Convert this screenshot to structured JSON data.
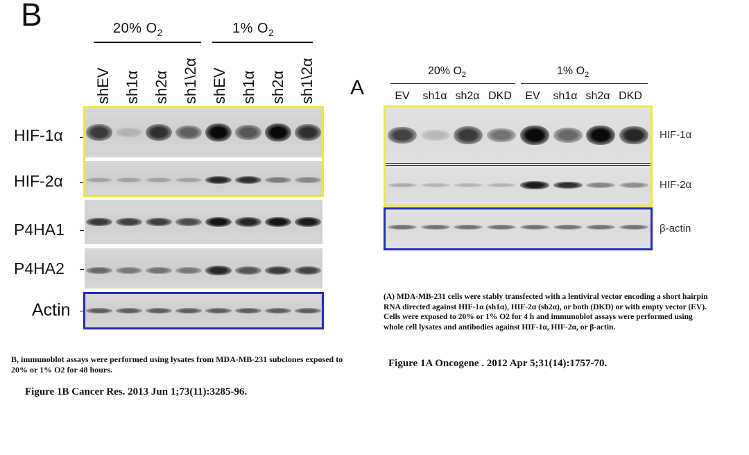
{
  "panel_b": {
    "letter": "B",
    "group_left": "20% O",
    "group_right": "1% O",
    "sub2": "2",
    "lanes": [
      "shEV",
      "sh1α",
      "sh2α",
      "sh1\\2α",
      "shEV",
      "sh1α",
      "sh2α",
      "sh1\\2α"
    ],
    "rows": [
      "HIF-1α",
      "HIF-2α",
      "P4HA1",
      "P4HA2",
      "Actin"
    ],
    "caption": "B, immunoblot assays were performed using lysates from MDA-MB-231 subclones exposed to 20% or 1% O2 for 48 hours.",
    "citation": "Figure 1B Cancer Res. 2013 Jun 1;73(11):3285-96."
  },
  "panel_a": {
    "letter": "A",
    "group_left": "20% O",
    "group_right": "1% O",
    "sub2": "2",
    "lanes": [
      "EV",
      "sh1α",
      "sh2α",
      "DKD",
      "EV",
      "sh1α",
      "sh2α",
      "DKD"
    ],
    "rows": [
      "HIF-1α",
      "HIF-2α",
      "β-actin"
    ],
    "caption": "(A) MDA-MB-231 cells were stably transfected with a lentiviral vector encoding a short hairpin RNA directed against HIF-1α (sh1α), HIF-2α (sh2α), or both (DKD) or with empty vector (EV). Cells were exposed to 20% or 1% O2 for 4 h and immunoblot assays were performed using whole cell lysates and antibodies against HIF-1α, HIF-2α, or β-actin.",
    "citation": "Figure 1A Oncogene . 2012 Apr 5;31(14):1757-70."
  },
  "band_intensity": {
    "b_hif1a": [
      0.75,
      0.12,
      0.8,
      0.55,
      1.0,
      0.6,
      1.0,
      0.8
    ],
    "b_hif2a": [
      0.2,
      0.2,
      0.2,
      0.2,
      0.85,
      0.8,
      0.4,
      0.35
    ],
    "b_p4ha1": [
      0.75,
      0.72,
      0.72,
      0.65,
      0.95,
      0.85,
      0.95,
      0.92
    ],
    "b_p4ha2": [
      0.5,
      0.42,
      0.45,
      0.42,
      0.85,
      0.6,
      0.75,
      0.7
    ],
    "b_actin": [
      0.55,
      0.55,
      0.55,
      0.55,
      0.55,
      0.55,
      0.55,
      0.55
    ],
    "a_hif1a": [
      0.7,
      0.08,
      0.75,
      0.45,
      1.0,
      0.5,
      1.0,
      0.85
    ],
    "a_hif2a": [
      0.15,
      0.1,
      0.1,
      0.1,
      0.9,
      0.8,
      0.35,
      0.3
    ],
    "a_actin": [
      0.45,
      0.45,
      0.45,
      0.45,
      0.45,
      0.45,
      0.45,
      0.45
    ]
  },
  "colors": {
    "highlight_yellow": "#f0e83a",
    "highlight_blue": "#1e2fb8"
  }
}
